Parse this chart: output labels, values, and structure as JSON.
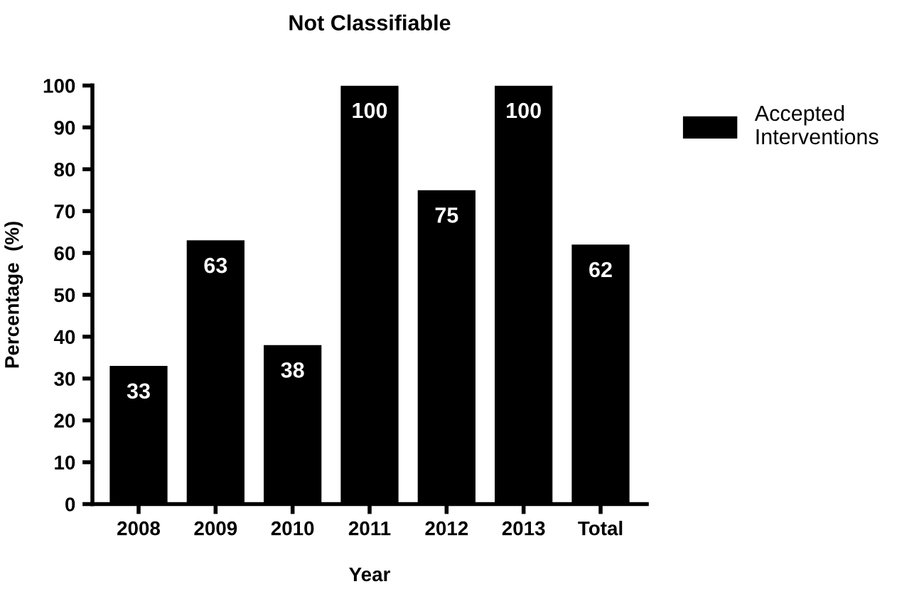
{
  "chart_data": {
    "type": "bar",
    "title": "Not Classifiable",
    "xlabel": "Year",
    "ylabel": "Percentage  (%)",
    "categories": [
      "2008",
      "2009",
      "2010",
      "2011",
      "2012",
      "2013",
      "Total"
    ],
    "series": [
      {
        "name": "Accepted Interventions",
        "color": "#000000",
        "values": [
          33,
          63,
          38,
          100,
          75,
          100,
          62
        ]
      }
    ],
    "ylim": [
      0,
      100
    ],
    "yticks": [
      0,
      10,
      20,
      30,
      40,
      50,
      60,
      70,
      80,
      90,
      100
    ],
    "data_labels": true,
    "grid": false,
    "legend": "top right"
  }
}
